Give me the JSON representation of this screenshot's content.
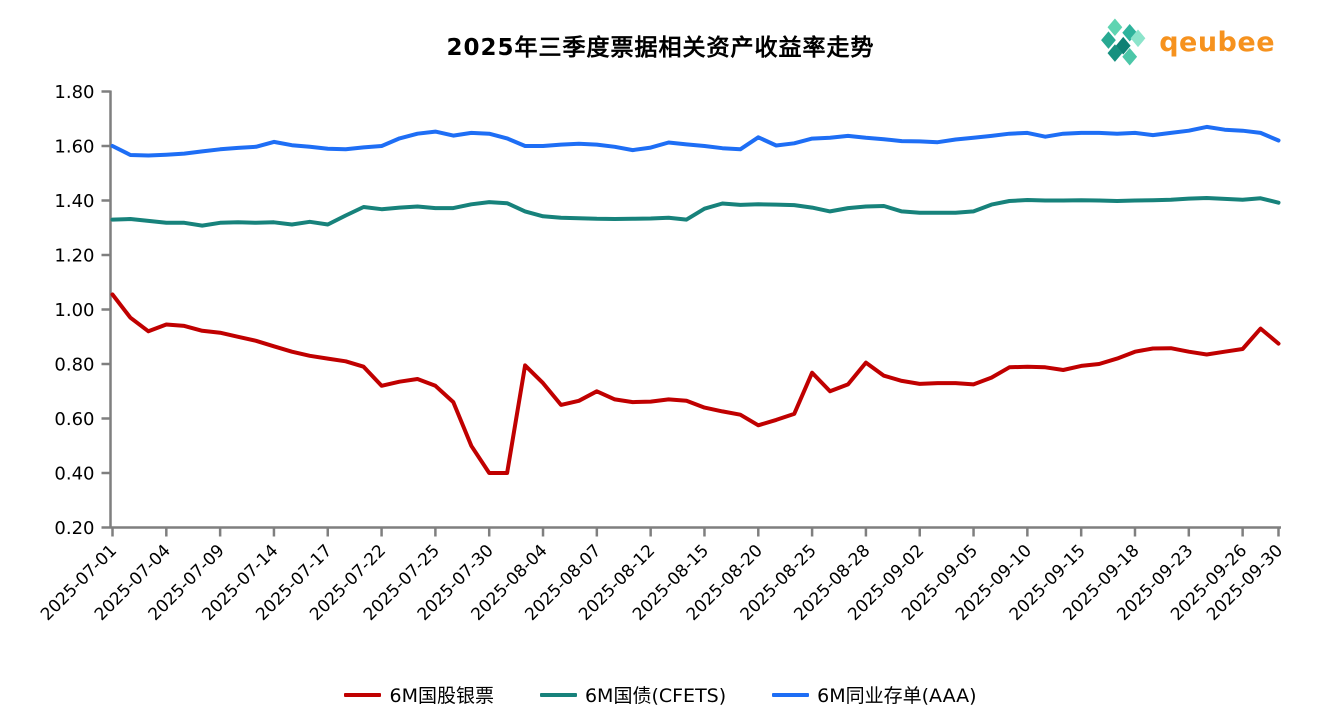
{
  "title": "2025年三季度票据相关资产收益率走势",
  "logo": {
    "text": "qeubee",
    "text_color": "#f6921e",
    "icon_colors": [
      "#5fd4b1",
      "#2eb39c",
      "#28a992",
      "#0e8174",
      "#8ce4cb",
      "#17907f",
      "#4cc7a8"
    ]
  },
  "axes": {
    "axis_color": "#7f7f7f",
    "label_color": "#000000",
    "y_tick_labels": [
      "0.20",
      "0.40",
      "0.60",
      "0.80",
      "1.00",
      "1.20",
      "1.40",
      "1.60",
      "1.80"
    ]
  },
  "chart_data": {
    "type": "line",
    "title": "2025年三季度票据相关资产收益率走势",
    "xlabel": "",
    "ylabel": "",
    "ylim": [
      0.2,
      1.8
    ],
    "y_tick_step": 0.2,
    "grid": false,
    "legend_position": "bottom",
    "x": [
      "2025-07-01",
      "2025-07-02",
      "2025-07-03",
      "2025-07-04",
      "2025-07-07",
      "2025-07-08",
      "2025-07-09",
      "2025-07-10",
      "2025-07-11",
      "2025-07-14",
      "2025-07-15",
      "2025-07-16",
      "2025-07-17",
      "2025-07-18",
      "2025-07-21",
      "2025-07-22",
      "2025-07-23",
      "2025-07-24",
      "2025-07-25",
      "2025-07-28",
      "2025-07-29",
      "2025-07-30",
      "2025-07-31",
      "2025-08-01",
      "2025-08-04",
      "2025-08-05",
      "2025-08-06",
      "2025-08-07",
      "2025-08-08",
      "2025-08-11",
      "2025-08-12",
      "2025-08-13",
      "2025-08-14",
      "2025-08-15",
      "2025-08-18",
      "2025-08-19",
      "2025-08-20",
      "2025-08-21",
      "2025-08-22",
      "2025-08-25",
      "2025-08-26",
      "2025-08-27",
      "2025-08-28",
      "2025-08-29",
      "2025-09-01",
      "2025-09-02",
      "2025-09-03",
      "2025-09-04",
      "2025-09-05",
      "2025-09-08",
      "2025-09-09",
      "2025-09-10",
      "2025-09-11",
      "2025-09-12",
      "2025-09-15",
      "2025-09-16",
      "2025-09-17",
      "2025-09-18",
      "2025-09-19",
      "2025-09-22",
      "2025-09-23",
      "2025-09-24",
      "2025-09-25",
      "2025-09-26",
      "2025-09-29",
      "2025-09-30"
    ],
    "x_tick_indices": [
      0,
      3,
      6,
      9,
      12,
      15,
      18,
      21,
      24,
      27,
      30,
      33,
      36,
      39,
      42,
      45,
      48,
      51,
      54,
      57,
      60,
      63,
      65
    ],
    "x_tick_labels": [
      "2025-07-01",
      "2025-07-04",
      "2025-07-09",
      "2025-07-14",
      "2025-07-17",
      "2025-07-22",
      "2025-07-25",
      "2025-07-30",
      "2025-08-04",
      "2025-08-07",
      "2025-08-12",
      "2025-08-15",
      "2025-08-20",
      "2025-08-25",
      "2025-08-28",
      "2025-09-02",
      "2025-09-05",
      "2025-09-10",
      "2025-09-15",
      "2025-09-18",
      "2025-09-23",
      "2025-09-26",
      "2025-09-30"
    ],
    "series": [
      {
        "key": "bank-bill",
        "name": "6M国股银票",
        "color": "#c00000",
        "values": [
          1.055,
          0.97,
          0.92,
          0.945,
          0.94,
          0.922,
          0.915,
          0.9,
          0.885,
          0.865,
          0.845,
          0.83,
          0.82,
          0.81,
          0.79,
          0.72,
          0.735,
          0.745,
          0.72,
          0.66,
          0.5,
          0.4,
          0.4,
          0.795,
          0.73,
          0.65,
          0.665,
          0.7,
          0.67,
          0.66,
          0.662,
          0.67,
          0.665,
          0.64,
          0.626,
          0.614,
          0.575,
          0.595,
          0.617,
          0.768,
          0.7,
          0.725,
          0.805,
          0.757,
          0.738,
          0.727,
          0.73,
          0.73,
          0.725,
          0.75,
          0.788,
          0.79,
          0.788,
          0.778,
          0.793,
          0.8,
          0.82,
          0.845,
          0.857,
          0.858,
          0.845,
          0.835,
          0.845,
          0.855,
          0.93,
          0.875
        ]
      },
      {
        "key": "treasury-cfets",
        "name": "6M国债(CFETS)",
        "color": "#17827b",
        "values": [
          1.33,
          1.332,
          1.325,
          1.318,
          1.318,
          1.308,
          1.318,
          1.32,
          1.318,
          1.32,
          1.312,
          1.322,
          1.312,
          1.345,
          1.376,
          1.368,
          1.374,
          1.378,
          1.372,
          1.372,
          1.386,
          1.394,
          1.39,
          1.36,
          1.342,
          1.337,
          1.335,
          1.333,
          1.332,
          1.333,
          1.334,
          1.337,
          1.33,
          1.37,
          1.389,
          1.384,
          1.386,
          1.385,
          1.383,
          1.374,
          1.36,
          1.372,
          1.378,
          1.38,
          1.36,
          1.355,
          1.355,
          1.355,
          1.36,
          1.385,
          1.398,
          1.402,
          1.4,
          1.4,
          1.401,
          1.4,
          1.398,
          1.4,
          1.401,
          1.403,
          1.407,
          1.409,
          1.406,
          1.403,
          1.408,
          1.392
        ]
      },
      {
        "key": "ncd-aaa",
        "name": "6M同业存单(AAA)",
        "color": "#1e6ef5",
        "values": [
          1.6,
          1.567,
          1.565,
          1.568,
          1.572,
          1.58,
          1.588,
          1.593,
          1.597,
          1.615,
          1.603,
          1.597,
          1.59,
          1.588,
          1.595,
          1.6,
          1.628,
          1.645,
          1.653,
          1.638,
          1.648,
          1.645,
          1.628,
          1.6,
          1.6,
          1.605,
          1.608,
          1.605,
          1.597,
          1.585,
          1.594,
          1.613,
          1.606,
          1.6,
          1.592,
          1.588,
          1.632,
          1.602,
          1.61,
          1.627,
          1.63,
          1.637,
          1.63,
          1.625,
          1.618,
          1.617,
          1.614,
          1.624,
          1.63,
          1.637,
          1.645,
          1.648,
          1.634,
          1.645,
          1.648,
          1.648,
          1.645,
          1.648,
          1.64,
          1.648,
          1.656,
          1.67,
          1.66,
          1.656,
          1.648,
          1.62
        ]
      }
    ]
  }
}
